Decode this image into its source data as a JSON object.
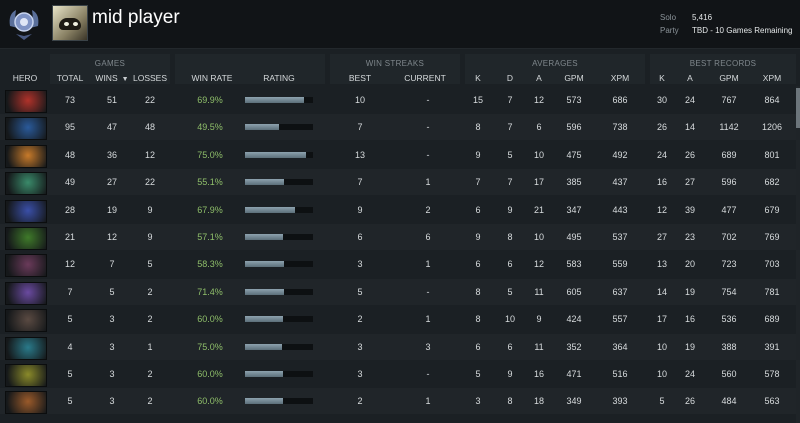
{
  "profile": {
    "name": "mid player",
    "stats": [
      {
        "label": "Solo",
        "value": "5,416"
      },
      {
        "label": "Party",
        "value": "TBD - 10 Games Remaining"
      }
    ]
  },
  "groups": {
    "games": "GAMES",
    "win_streaks": "WIN STREAKS",
    "averages": "AVERAGES",
    "best_records": "BEST RECORDS"
  },
  "columns": {
    "hero": "HERO",
    "total": "TOTAL",
    "wins": "WINS",
    "losses": "LOSSES",
    "win_rate": "WIN RATE",
    "rating": "RATING",
    "best": "BEST",
    "current": "CURRENT",
    "k": "K",
    "d": "D",
    "a": "A",
    "gpm": "GPM",
    "xpm": "XPM",
    "best_k": "K",
    "best_a": "A",
    "best_gpm": "GPM",
    "best_xpm": "XPM"
  },
  "colors": {
    "win_rate": "#8fbf6a",
    "rating_bar": "#7f95a2",
    "background": "#1b2024"
  },
  "rows": [
    {
      "hero_icon": "hero-1-icon",
      "hero_color": "#b0322a",
      "total": "73",
      "wins": "51",
      "losses": "22",
      "win_rate": "69.9%",
      "rating": 0.87,
      "best": "10",
      "current": "-",
      "k": "15",
      "d": "7",
      "a": "12",
      "gpm": "573",
      "xpm": "686",
      "best_k": "30",
      "best_a": "24",
      "best_gpm": "767",
      "best_xpm": "864"
    },
    {
      "hero_icon": "hero-2-icon",
      "hero_color": "#2a5a9a",
      "total": "95",
      "wins": "47",
      "losses": "48",
      "win_rate": "49.5%",
      "rating": 0.5,
      "best": "7",
      "current": "-",
      "k": "8",
      "d": "7",
      "a": "6",
      "gpm": "596",
      "xpm": "738",
      "best_k": "26",
      "best_a": "14",
      "best_gpm": "1142",
      "best_xpm": "1206"
    },
    {
      "hero_icon": "hero-3-icon",
      "hero_color": "#c77a2a",
      "total": "48",
      "wins": "36",
      "losses": "12",
      "win_rate": "75.0%",
      "rating": 0.9,
      "best": "13",
      "current": "-",
      "k": "9",
      "d": "5",
      "a": "10",
      "gpm": "475",
      "xpm": "492",
      "best_k": "24",
      "best_a": "26",
      "best_gpm": "689",
      "best_xpm": "801"
    },
    {
      "hero_icon": "hero-4-icon",
      "hero_color": "#3a8a6a",
      "total": "49",
      "wins": "27",
      "losses": "22",
      "win_rate": "55.1%",
      "rating": 0.58,
      "best": "7",
      "current": "1",
      "k": "7",
      "d": "7",
      "a": "17",
      "gpm": "385",
      "xpm": "437",
      "best_k": "16",
      "best_a": "27",
      "best_gpm": "596",
      "best_xpm": "682"
    },
    {
      "hero_icon": "hero-5-icon",
      "hero_color": "#3a4fa8",
      "total": "28",
      "wins": "19",
      "losses": "9",
      "win_rate": "67.9%",
      "rating": 0.74,
      "best": "9",
      "current": "2",
      "k": "6",
      "d": "9",
      "a": "21",
      "gpm": "347",
      "xpm": "443",
      "best_k": "12",
      "best_a": "39",
      "best_gpm": "477",
      "best_xpm": "679"
    },
    {
      "hero_icon": "hero-6-icon",
      "hero_color": "#3f7a2a",
      "total": "21",
      "wins": "12",
      "losses": "9",
      "win_rate": "57.1%",
      "rating": 0.56,
      "best": "6",
      "current": "6",
      "k": "9",
      "d": "8",
      "a": "10",
      "gpm": "495",
      "xpm": "537",
      "best_k": "27",
      "best_a": "23",
      "best_gpm": "702",
      "best_xpm": "769"
    },
    {
      "hero_icon": "hero-7-icon",
      "hero_color": "#6a3a5a",
      "total": "12",
      "wins": "7",
      "losses": "5",
      "win_rate": "58.3%",
      "rating": 0.58,
      "best": "3",
      "current": "1",
      "k": "6",
      "d": "6",
      "a": "12",
      "gpm": "583",
      "xpm": "559",
      "best_k": "13",
      "best_a": "20",
      "best_gpm": "723",
      "best_xpm": "703"
    },
    {
      "hero_icon": "hero-8-icon",
      "hero_color": "#6a4aa0",
      "total": "7",
      "wins": "5",
      "losses": "2",
      "win_rate": "71.4%",
      "rating": 0.58,
      "best": "5",
      "current": "-",
      "k": "8",
      "d": "5",
      "a": "11",
      "gpm": "605",
      "xpm": "637",
      "best_k": "14",
      "best_a": "19",
      "best_gpm": "754",
      "best_xpm": "781"
    },
    {
      "hero_icon": "hero-9-icon",
      "hero_color": "#5a4a42",
      "total": "5",
      "wins": "3",
      "losses": "2",
      "win_rate": "60.0%",
      "rating": 0.56,
      "best": "2",
      "current": "1",
      "k": "8",
      "d": "10",
      "a": "9",
      "gpm": "424",
      "xpm": "557",
      "best_k": "17",
      "best_a": "16",
      "best_gpm": "536",
      "best_xpm": "689"
    },
    {
      "hero_icon": "hero-10-icon",
      "hero_color": "#2a7a8a",
      "total": "4",
      "wins": "3",
      "losses": "1",
      "win_rate": "75.0%",
      "rating": 0.55,
      "best": "3",
      "current": "3",
      "k": "6",
      "d": "6",
      "a": "11",
      "gpm": "352",
      "xpm": "364",
      "best_k": "10",
      "best_a": "19",
      "best_gpm": "388",
      "best_xpm": "391"
    },
    {
      "hero_icon": "hero-11-icon",
      "hero_color": "#8a8a2a",
      "total": "5",
      "wins": "3",
      "losses": "2",
      "win_rate": "60.0%",
      "rating": 0.56,
      "best": "3",
      "current": "-",
      "k": "5",
      "d": "9",
      "a": "16",
      "gpm": "471",
      "xpm": "516",
      "best_k": "10",
      "best_a": "24",
      "best_gpm": "560",
      "best_xpm": "578"
    },
    {
      "hero_icon": "hero-12-icon",
      "hero_color": "#9a5a2a",
      "total": "5",
      "wins": "3",
      "losses": "2",
      "win_rate": "60.0%",
      "rating": 0.56,
      "best": "2",
      "current": "1",
      "k": "3",
      "d": "8",
      "a": "18",
      "gpm": "349",
      "xpm": "393",
      "best_k": "5",
      "best_a": "26",
      "best_gpm": "484",
      "best_xpm": "563"
    }
  ]
}
